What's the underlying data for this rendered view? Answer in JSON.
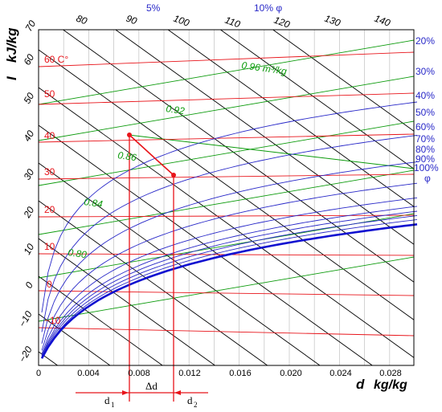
{
  "axes": {
    "y_unit": "kJ/kg",
    "y_symbol": "I",
    "x_unit": "kg/kg",
    "x_symbol": "d",
    "x_ticks": [
      "0",
      "0.004",
      "0.008",
      "0.012",
      "0.016",
      "0.020",
      "0.024",
      "0.028"
    ],
    "y_ticks": [
      "70",
      "60",
      "50",
      "40",
      "30",
      "20",
      "10",
      "0",
      "−10",
      "−20"
    ]
  },
  "top_enthalpy_labels": [
    "80",
    "90",
    "100",
    "110",
    "120",
    "130",
    "140"
  ],
  "temperature_labels": [
    "60 C°",
    "50",
    "40",
    "30",
    "20",
    "10",
    "0",
    "−10"
  ],
  "volume_labels": [
    "0.96 m³/kg",
    "0.92",
    "0.86",
    "0.84",
    "0.80"
  ],
  "humidity_labels": {
    "top": [
      "5%",
      "10% φ"
    ],
    "right": [
      "20%",
      "30%",
      "40%",
      "50%",
      "60%",
      "70%",
      "80%",
      "90%",
      "100%",
      "φ"
    ]
  },
  "annotations": {
    "d1": "d",
    "d1_sub": "1",
    "d2": "d",
    "d2_sub": "2",
    "delta": "Δd"
  },
  "colors": {
    "temperature": "#e8141a",
    "humidity": "#2828c8",
    "saturation": "#1010d0",
    "volume": "#0a9a0a",
    "enthalpy": "#000000",
    "process": "#e8141a"
  }
}
